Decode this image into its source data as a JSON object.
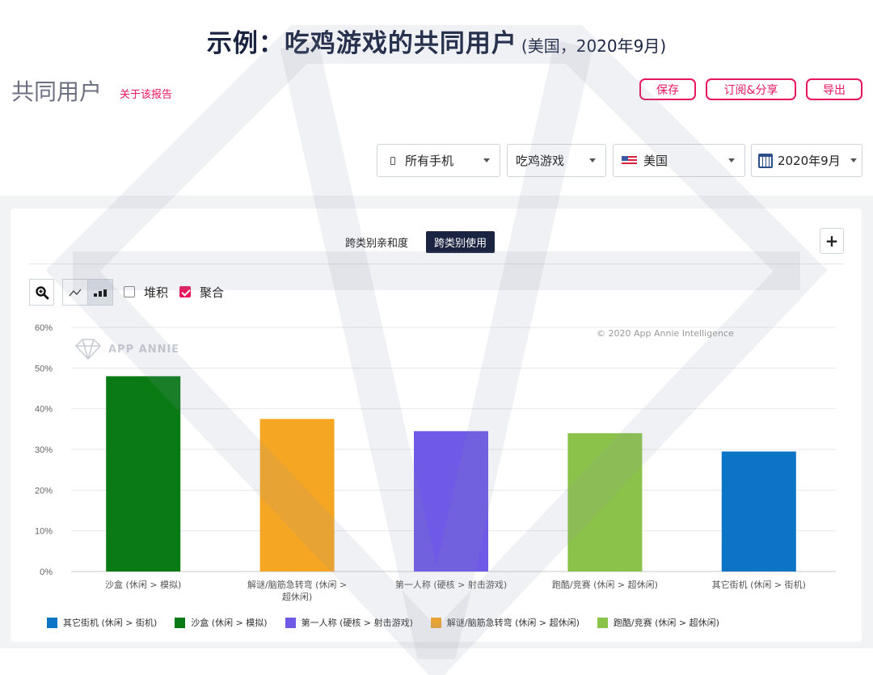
{
  "header": {
    "title_main": "示例：吃鸡游戏的共同用户",
    "title_sub": "(美国，2020年9月)"
  },
  "section": {
    "title": "共同用户",
    "about_link": "关于该报告"
  },
  "actions": {
    "save": "保存",
    "subscribe_share": "订阅&分享",
    "export": "导出"
  },
  "filters": {
    "device": "所有手机",
    "category": "吃鸡游戏",
    "country": "美国",
    "date": "2020年9月"
  },
  "tabs": {
    "affinity": "跨类别亲和度",
    "usage": "跨类别使用"
  },
  "toolbar": {
    "plus": "+",
    "stack_label": "堆积",
    "aggregate_label": "聚合"
  },
  "watermark": {
    "brand": "APP ANNIE",
    "copyright": "© 2020 App Annie Intelligence"
  },
  "colors": {
    "accent": "#e8175d",
    "navy": "#1a2340"
  },
  "chart_data": {
    "type": "bar",
    "categories": [
      "沙盒 (休闲 > 模拟)",
      "解谜/脑筋急转弯 (休闲 > 超休闲)",
      "第一人称 (硬核 > 射击游戏)",
      "跑酷/竞赛 (休闲 > 超休闲)",
      "其它街机 (休闲 > 街机)"
    ],
    "category_lines": [
      [
        "沙盒 (休闲 > 模拟)"
      ],
      [
        "解谜/脑筋急转弯 (休闲 >",
        "超休闲)"
      ],
      [
        "第一人称 (硬核 > 射击游戏)"
      ],
      [
        "跑酷/竞赛 (休闲 > 超休闲)"
      ],
      [
        "其它街机 (休闲 > 街机)"
      ]
    ],
    "values": [
      48,
      37.5,
      34.5,
      34,
      29.5
    ],
    "colors": [
      "#0a7a14",
      "#f5a623",
      "#6e5ae6",
      "#8bc34a",
      "#0b74c4"
    ],
    "ylim": [
      0,
      60
    ],
    "yticks": [
      0,
      10,
      20,
      30,
      40,
      50,
      60
    ],
    "ytick_labels": [
      "0%",
      "10%",
      "20%",
      "30%",
      "40%",
      "50%",
      "60%"
    ],
    "grid": true,
    "legend_position": "bottom-left",
    "legend": [
      {
        "name": "其它街机 (休闲 > 街机)",
        "color": "#0b74c4"
      },
      {
        "name": "沙盒 (休闲 > 模拟)",
        "color": "#0a7a14"
      },
      {
        "name": "第一人称 (硬核 > 射击游戏)",
        "color": "#6e5ae6"
      },
      {
        "name": "解谜/脑筋急转弯 (休闲 > 超休闲)",
        "color": "#f5a623"
      },
      {
        "name": "跑酷/竞赛 (休闲 > 超休闲)",
        "color": "#8bc34a"
      }
    ]
  }
}
